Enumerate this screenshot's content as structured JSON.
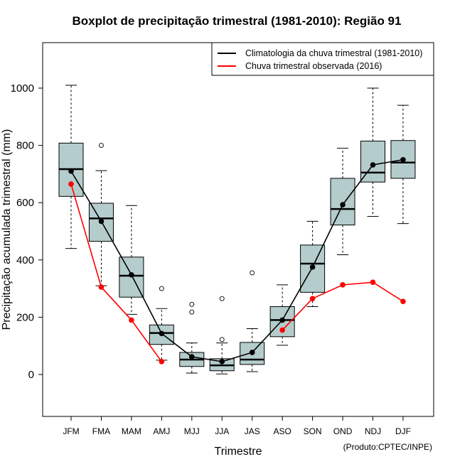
{
  "chart_data": {
    "type": "boxplot",
    "title": "Boxplot de precipitação trimestral (1981-2010): Região 91",
    "xlabel": "Trimestre",
    "ylabel": "Precipitação acumulada trimestral (mm)",
    "ylim": [
      -150,
      1150
    ],
    "yticks": [
      0,
      200,
      400,
      600,
      800,
      1000
    ],
    "grid": false,
    "legend_position": "top-right",
    "credit": "(Produto:CPTEC/INPE)",
    "colors": {
      "box_fill": "#b5cccc",
      "climatology": "#000000",
      "observed": "#ff0000"
    },
    "categories": [
      "JFM",
      "FMA",
      "MAM",
      "AMJ",
      "MJJ",
      "JJA",
      "JAS",
      "ASO",
      "SON",
      "OND",
      "NDJ",
      "DJF"
    ],
    "boxes": [
      {
        "min": 440,
        "q1": 622,
        "median": 717,
        "q3": 808,
        "max": 1010,
        "outliers": []
      },
      {
        "min": 310,
        "q1": 465,
        "median": 545,
        "q3": 598,
        "max": 712,
        "outliers": [
          800
        ]
      },
      {
        "min": 210,
        "q1": 270,
        "median": 345,
        "q3": 410,
        "max": 590,
        "outliers": []
      },
      {
        "min": 50,
        "q1": 105,
        "median": 145,
        "q3": 173,
        "max": 230,
        "outliers": [
          300
        ]
      },
      {
        "min": 5,
        "q1": 28,
        "median": 52,
        "q3": 77,
        "max": 110,
        "outliers": [
          245,
          218
        ]
      },
      {
        "min": 2,
        "q1": 13,
        "median": 32,
        "q3": 55,
        "max": 110,
        "outliers": [
          265,
          122
        ]
      },
      {
        "min": 10,
        "q1": 35,
        "median": 52,
        "q3": 112,
        "max": 160,
        "outliers": [
          355
        ]
      },
      {
        "min": 102,
        "q1": 132,
        "median": 190,
        "q3": 237,
        "max": 313,
        "outliers": []
      },
      {
        "min": 237,
        "q1": 287,
        "median": 387,
        "q3": 452,
        "max": 535,
        "outliers": []
      },
      {
        "min": 418,
        "q1": 522,
        "median": 578,
        "q3": 685,
        "max": 790,
        "outliers": []
      },
      {
        "min": 552,
        "q1": 672,
        "median": 705,
        "q3": 815,
        "max": 1000,
        "outliers": []
      },
      {
        "min": 527,
        "q1": 685,
        "median": 740,
        "q3": 817,
        "max": 940,
        "outliers": []
      }
    ],
    "series": [
      {
        "name": "Climatologia da chuva trimestral (1981-2010)",
        "color": "#000000",
        "values": [
          710,
          535,
          348,
          143,
          62,
          45,
          77,
          190,
          375,
          593,
          732,
          750
        ]
      },
      {
        "name": "Chuva trimestral observada (2016)",
        "color": "#ff0000",
        "values": [
          665,
          305,
          190,
          45,
          null,
          null,
          null,
          155,
          265,
          313,
          322,
          255
        ]
      }
    ]
  }
}
